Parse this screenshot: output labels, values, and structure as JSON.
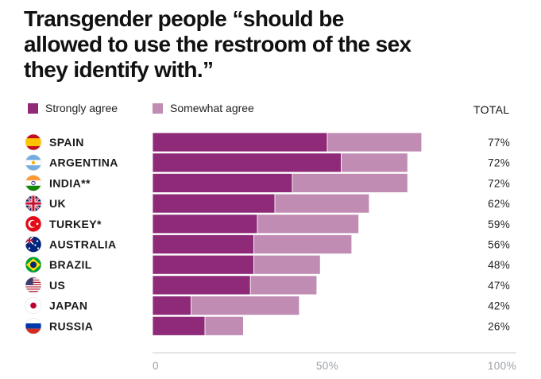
{
  "title": "Transgender people “should be allowed to use the restroom of the sex they identify with.”",
  "colors": {
    "strongly": "#8e2a78",
    "somewhat": "#c18cb4",
    "axis": "#c8ccd0",
    "tick": "#9aa1a8"
  },
  "chart_data": {
    "type": "bar",
    "orientation": "horizontal",
    "stacked": true,
    "title": "Transgender people “should be allowed to use the restroom of the sex they identify with.”",
    "legend": [
      "Strongly agree",
      "Somewhat agree"
    ],
    "total_header": "TOTAL",
    "categories": [
      "SPAIN",
      "ARGENTINA",
      "INDIA**",
      "UK",
      "TURKEY*",
      "AUSTRALIA",
      "BRAZIL",
      "US",
      "JAPAN",
      "RUSSIA"
    ],
    "flags": [
      "spain-flag-icon",
      "argentina-flag-icon",
      "india-flag-icon",
      "uk-flag-icon",
      "turkey-flag-icon",
      "australia-flag-icon",
      "brazil-flag-icon",
      "us-flag-icon",
      "japan-flag-icon",
      "russia-flag-icon"
    ],
    "series": [
      {
        "name": "Strongly agree",
        "values": [
          50,
          54,
          40,
          35,
          30,
          29,
          29,
          28,
          11,
          15
        ]
      },
      {
        "name": "Somewhat agree",
        "values": [
          27,
          19,
          33,
          27,
          29,
          28,
          19,
          19,
          31,
          11
        ]
      }
    ],
    "totals": [
      "77%",
      "72%",
      "72%",
      "62%",
      "59%",
      "56%",
      "48%",
      "47%",
      "42%",
      "26%"
    ],
    "xlim": [
      0,
      100
    ],
    "xticks": [
      0,
      50,
      100
    ],
    "xtick_labels": [
      "0",
      "50%",
      "100%"
    ]
  }
}
